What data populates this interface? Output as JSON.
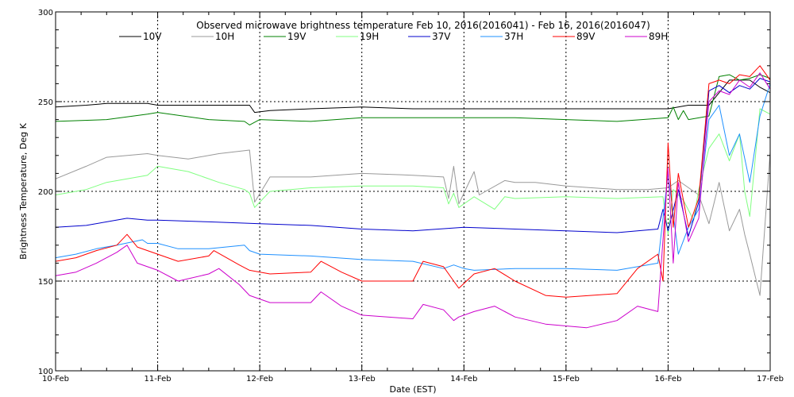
{
  "chart_data": {
    "type": "line",
    "title": "Observed microwave brightness temperature Feb 10, 2016(2016041) - Feb 16, 2016(2016047)",
    "xlabel": "Date (EST)",
    "ylabel": "Brightness Temperature, Deg K",
    "xlim": [
      0,
      7
    ],
    "ylim": [
      100,
      300
    ],
    "x_ticks": [
      {
        "value": 0,
        "label": "10-Feb"
      },
      {
        "value": 1,
        "label": "11-Feb"
      },
      {
        "value": 2,
        "label": "12-Feb"
      },
      {
        "value": 3,
        "label": "13-Feb"
      },
      {
        "value": 4,
        "label": "14-Feb"
      },
      {
        "value": 5,
        "label": "15-Feb"
      },
      {
        "value": 6,
        "label": "16-Feb"
      },
      {
        "value": 7,
        "label": "17-Feb"
      }
    ],
    "y_ticks": [
      {
        "value": 100,
        "label": "100"
      },
      {
        "value": 150,
        "label": "150"
      },
      {
        "value": 200,
        "label": "200"
      },
      {
        "value": 250,
        "label": "250"
      },
      {
        "value": 300,
        "label": "300"
      }
    ],
    "grid": "dotted lines at each x tick and at y = 150, 200, 250",
    "legend_position": "top",
    "x_units": "days since 10-Feb 00:00 EST",
    "series": [
      {
        "name": "10V",
        "color": "#000000",
        "x": [
          0,
          0.3,
          0.5,
          0.9,
          1.0,
          1.5,
          1.9,
          1.95,
          2.1,
          2.5,
          3.0,
          3.5,
          4.0,
          4.5,
          5.0,
          5.5,
          6.0,
          6.2,
          6.4,
          6.6,
          6.8,
          6.9,
          7.0
        ],
        "y": [
          247,
          248,
          249,
          249,
          248,
          248,
          248,
          244,
          245,
          246,
          247,
          246,
          246,
          246,
          246,
          246,
          246,
          248,
          248,
          262,
          262,
          258,
          255
        ]
      },
      {
        "name": "10H",
        "color": "#999999",
        "x": [
          0,
          0.3,
          0.5,
          0.9,
          1.0,
          1.3,
          1.6,
          1.9,
          1.95,
          2.1,
          2.5,
          3.0,
          3.5,
          3.8,
          3.85,
          3.9,
          3.95,
          4.1,
          4.15,
          4.4,
          4.5,
          4.7,
          5.0,
          5.5,
          5.8,
          6.0,
          6.1,
          6.3,
          6.4,
          6.5,
          6.6,
          6.7,
          6.75,
          6.8,
          6.9,
          7.0
        ],
        "y": [
          207,
          214,
          219,
          221,
          220,
          218,
          221,
          223,
          194,
          208,
          208,
          210,
          209,
          208,
          196,
          214,
          193,
          211,
          198,
          206,
          205,
          205,
          203,
          201,
          201,
          202,
          206,
          198,
          182,
          205,
          178,
          190,
          176,
          165,
          142,
          222
        ]
      },
      {
        "name": "19V",
        "color": "#008000",
        "x": [
          0,
          0.5,
          0.9,
          1.0,
          1.5,
          1.85,
          1.9,
          2.0,
          2.5,
          3.0,
          3.5,
          4.0,
          4.5,
          5.0,
          5.5,
          6.0,
          6.05,
          6.1,
          6.15,
          6.2,
          6.4,
          6.5,
          6.6,
          6.7,
          6.8,
          6.9,
          7.0
        ],
        "y": [
          239,
          240,
          243,
          244,
          240,
          239,
          237,
          240,
          239,
          241,
          241,
          241,
          241,
          240,
          239,
          241,
          247,
          240,
          245,
          240,
          242,
          264,
          265,
          262,
          263,
          265,
          263
        ]
      },
      {
        "name": "19H",
        "color": "#80ff80",
        "x": [
          0,
          0.3,
          0.5,
          0.9,
          1.0,
          1.3,
          1.6,
          1.85,
          1.9,
          1.95,
          2.1,
          2.5,
          3.0,
          3.5,
          3.8,
          3.85,
          3.9,
          3.95,
          4.1,
          4.3,
          4.4,
          4.5,
          5.0,
          5.5,
          5.95,
          6.0,
          6.05,
          6.15,
          6.25,
          6.3,
          6.4,
          6.5,
          6.6,
          6.7,
          6.75,
          6.8,
          6.9,
          7.0
        ],
        "y": [
          198,
          201,
          205,
          209,
          214,
          211,
          205,
          201,
          199,
          191,
          200,
          202,
          203,
          203,
          202,
          193,
          199,
          191,
          197,
          190,
          197,
          196,
          197,
          196,
          197,
          176,
          201,
          195,
          184,
          201,
          224,
          232,
          217,
          232,
          200,
          186,
          246,
          243
        ]
      },
      {
        "name": "37V",
        "color": "#0000cc",
        "x": [
          0,
          0.3,
          0.5,
          0.7,
          0.9,
          1.0,
          1.5,
          2.0,
          2.5,
          3.0,
          3.5,
          4.0,
          4.5,
          5.0,
          5.5,
          5.9,
          5.95,
          6.0,
          6.1,
          6.2,
          6.3,
          6.4,
          6.5,
          6.6,
          6.7,
          6.8,
          6.9,
          7.0
        ],
        "y": [
          180,
          181,
          183,
          185,
          184,
          184,
          183,
          182,
          181,
          179,
          178,
          180,
          179,
          178,
          177,
          179,
          190,
          178,
          201,
          175,
          194,
          256,
          259,
          255,
          259,
          257,
          263,
          261
        ]
      },
      {
        "name": "37H",
        "color": "#1e90ff",
        "x": [
          0,
          0.2,
          0.4,
          0.6,
          0.85,
          0.9,
          1.0,
          1.2,
          1.5,
          1.85,
          1.9,
          2.0,
          2.5,
          3.0,
          3.5,
          3.8,
          3.9,
          4.0,
          4.1,
          4.5,
          5.0,
          5.5,
          5.9,
          6.0,
          6.1,
          6.2,
          6.3,
          6.4,
          6.5,
          6.6,
          6.7,
          6.8,
          6.9,
          7.0
        ],
        "y": [
          163,
          165,
          168,
          170,
          173,
          171,
          171,
          168,
          168,
          170,
          167,
          165,
          164,
          162,
          161,
          157,
          159,
          157,
          156,
          157,
          157,
          156,
          160,
          210,
          165,
          180,
          190,
          240,
          248,
          220,
          232,
          205,
          242,
          260
        ]
      },
      {
        "name": "89V",
        "color": "#ff0000",
        "x": [
          0,
          0.2,
          0.4,
          0.6,
          0.7,
          0.8,
          0.9,
          1.0,
          1.2,
          1.5,
          1.55,
          1.8,
          1.9,
          2.1,
          2.5,
          2.6,
          2.8,
          3.0,
          3.5,
          3.6,
          3.8,
          3.9,
          3.95,
          4.1,
          4.3,
          4.5,
          4.8,
          5.0,
          5.5,
          5.7,
          5.9,
          5.95,
          6.0,
          6.05,
          6.1,
          6.2,
          6.3,
          6.4,
          6.5,
          6.6,
          6.7,
          6.8,
          6.9,
          7.0
        ],
        "y": [
          161,
          163,
          167,
          170,
          176,
          169,
          167,
          165,
          161,
          164,
          167,
          159,
          156,
          154,
          155,
          161,
          155,
          150,
          150,
          161,
          158,
          150,
          146,
          154,
          157,
          150,
          142,
          141,
          143,
          157,
          165,
          150,
          227,
          180,
          210,
          180,
          196,
          260,
          262,
          260,
          265,
          264,
          270,
          262
        ]
      },
      {
        "name": "89H",
        "color": "#cc00cc",
        "x": [
          0,
          0.2,
          0.4,
          0.6,
          0.7,
          0.8,
          0.9,
          1.0,
          1.2,
          1.5,
          1.6,
          1.8,
          1.9,
          2.1,
          2.5,
          2.6,
          2.8,
          3.0,
          3.5,
          3.6,
          3.8,
          3.9,
          3.95,
          4.1,
          4.3,
          4.5,
          4.8,
          5.0,
          5.2,
          5.5,
          5.7,
          5.9,
          6.0,
          6.05,
          6.1,
          6.2,
          6.3,
          6.4,
          6.5,
          6.6,
          6.7,
          6.8,
          6.9,
          7.0
        ],
        "y": [
          153,
          155,
          160,
          166,
          170,
          160,
          158,
          156,
          150,
          154,
          157,
          148,
          142,
          138,
          138,
          144,
          136,
          131,
          129,
          137,
          134,
          128,
          130,
          133,
          136,
          130,
          126,
          125,
          124,
          128,
          136,
          133,
          213,
          160,
          205,
          172,
          185,
          250,
          256,
          254,
          262,
          258,
          266,
          257
        ]
      }
    ]
  }
}
